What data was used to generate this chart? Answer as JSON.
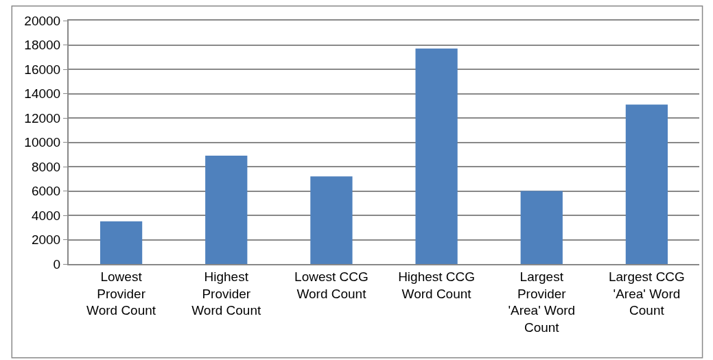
{
  "chart_data": {
    "type": "bar",
    "categories": [
      "Lowest Provider Word Count",
      "Highest Provider Word Count",
      "Lowest CCG Word Count",
      "Highest CCG Word Count",
      "Largest Provider 'Area' Word Count",
      "Largest CCG 'Area' Word Count"
    ],
    "values": [
      3500,
      8900,
      7200,
      17700,
      6000,
      13100
    ],
    "color": "#4f81bd",
    "ylim": [
      0,
      20000
    ],
    "yticks": [
      0,
      2000,
      4000,
      6000,
      8000,
      10000,
      12000,
      14000,
      16000,
      18000,
      20000
    ],
    "grid": "y"
  }
}
